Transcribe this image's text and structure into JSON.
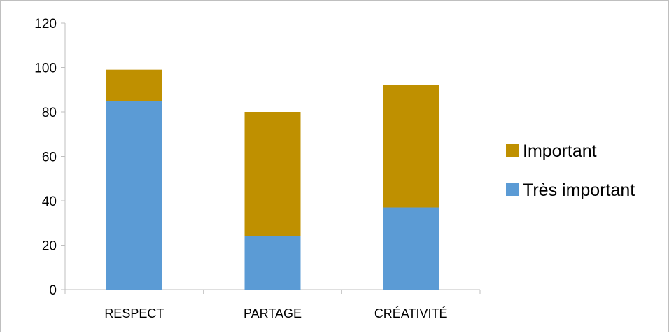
{
  "chart_data": {
    "type": "bar",
    "stacked": true,
    "categories": [
      "RESPECT",
      "PARTAGE",
      "CRÉATIVITÉ"
    ],
    "series": [
      {
        "name": "Très important",
        "values": [
          85,
          24,
          37
        ],
        "color": "#5b9bd5"
      },
      {
        "name": "Important",
        "values": [
          14,
          56,
          55
        ],
        "color": "#bf9000"
      }
    ],
    "ylim": [
      0,
      120
    ],
    "yticks": [
      0,
      20,
      40,
      60,
      80,
      100,
      120
    ],
    "legend": {
      "position": "right",
      "entries": [
        "Important",
        "Très important"
      ]
    },
    "grid": false
  }
}
